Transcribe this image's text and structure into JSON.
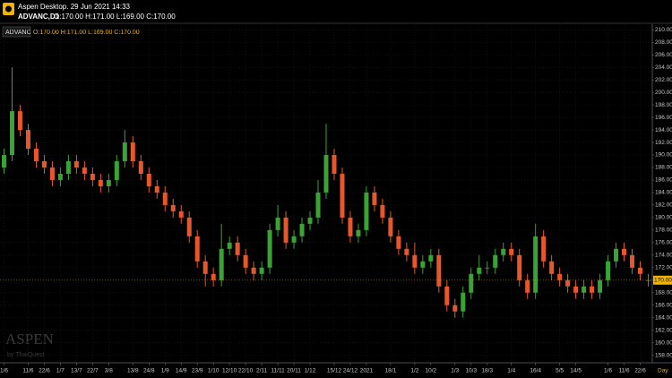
{
  "header": {
    "app_title": "Aspen Desktop. 29 Jun 2021 14:33",
    "symbol": "ADVANC,D1",
    "ohlc": "O:170.00 H:171.00 L:169.00 C:170.00"
  },
  "chart_data": {
    "type": "candlestick",
    "legend": {
      "symbol": "ADVANC",
      "ohlc": "O:170.00 H:171.00 L:169.00 C:170.00"
    },
    "watermark": {
      "brand": "ASPEN",
      "by": "by ThaiQuest"
    },
    "x_label": "Day",
    "up_color": "#3aa335",
    "down_color": "#e8572c",
    "grid": true,
    "categories": [
      "1/6",
      null,
      null,
      "11/6",
      null,
      "22/6",
      null,
      "1/7",
      null,
      "13/7",
      null,
      "22/7",
      null,
      "3/8",
      null,
      null,
      "13/8",
      null,
      "24/8",
      null,
      "1/9",
      null,
      "14/9",
      null,
      "23/9",
      null,
      "1/10",
      null,
      "12/10",
      null,
      "22/10",
      null,
      "2/11",
      null,
      "11/11",
      null,
      "20/11",
      null,
      "1/12",
      null,
      null,
      "15/12",
      null,
      "24/12",
      null,
      "2021",
      null,
      null,
      "18/1",
      null,
      null,
      "1/2",
      null,
      "10/2",
      null,
      null,
      "1/3",
      null,
      "10/3",
      null,
      "18/3",
      null,
      null,
      "1/4",
      null,
      null,
      "16/4",
      null,
      null,
      "5/5",
      null,
      "14/5",
      null,
      null,
      null,
      "1/6",
      null,
      "11/6",
      null,
      "22/6",
      null
    ],
    "open": [
      188,
      190,
      197,
      194,
      191,
      189,
      188,
      186,
      187,
      189,
      188,
      187,
      186,
      185,
      186,
      189,
      192,
      189,
      187,
      185,
      184,
      182,
      181,
      180,
      177,
      173,
      171,
      170,
      175,
      176,
      174,
      172,
      171,
      172,
      178,
      180,
      176,
      177,
      179,
      180,
      184,
      190,
      187,
      180,
      177,
      178,
      184,
      182,
      180,
      177,
      175,
      174,
      172,
      173,
      174,
      169,
      166,
      165,
      168,
      171,
      172,
      172,
      174,
      175,
      174,
      170,
      168,
      177,
      173,
      171,
      170,
      169,
      168,
      169,
      168,
      170,
      173,
      175,
      174,
      172,
      170
    ],
    "high": [
      191,
      204,
      198,
      195,
      192,
      190,
      189,
      188,
      190,
      190,
      189,
      188,
      187,
      187,
      190,
      194,
      193,
      190,
      188,
      186,
      185,
      183,
      182,
      181,
      178,
      174,
      172,
      179,
      177,
      177,
      175,
      173,
      173,
      179,
      182,
      181,
      178,
      180,
      181,
      186,
      195,
      191,
      188,
      181,
      179,
      185,
      185,
      183,
      181,
      178,
      176,
      176,
      174,
      175,
      175,
      170,
      167,
      169,
      172,
      174,
      173,
      175,
      176,
      176,
      175,
      171,
      179,
      178,
      174,
      172,
      171,
      170,
      170,
      170,
      171,
      174,
      176,
      176,
      175,
      173,
      171
    ],
    "low": [
      187,
      189,
      193,
      190,
      188,
      187,
      185,
      185,
      186,
      187,
      186,
      185,
      184,
      184,
      185,
      188,
      188,
      186,
      184,
      183,
      181,
      180,
      179,
      176,
      172,
      169,
      169,
      169,
      174,
      173,
      171,
      170,
      170,
      171,
      177,
      175,
      175,
      176,
      178,
      179,
      183,
      186,
      179,
      176,
      176,
      177,
      181,
      179,
      176,
      174,
      173,
      171,
      171,
      172,
      168,
      165,
      164,
      164,
      167,
      170,
      171,
      171,
      173,
      173,
      169,
      167,
      167,
      172,
      170,
      169,
      168,
      167,
      167,
      167,
      167,
      169,
      172,
      173,
      171,
      170,
      169
    ],
    "close": [
      190,
      197,
      194,
      191,
      189,
      188,
      186,
      187,
      189,
      188,
      187,
      186,
      185,
      186,
      189,
      192,
      189,
      187,
      185,
      184,
      182,
      181,
      180,
      177,
      173,
      171,
      170,
      175,
      176,
      174,
      172,
      171,
      172,
      178,
      180,
      176,
      177,
      179,
      180,
      184,
      190,
      187,
      180,
      177,
      178,
      184,
      182,
      180,
      177,
      175,
      174,
      172,
      173,
      174,
      169,
      166,
      165,
      168,
      171,
      172,
      172,
      174,
      175,
      174,
      170,
      168,
      177,
      173,
      171,
      170,
      169,
      168,
      169,
      168,
      170,
      173,
      175,
      174,
      172,
      171,
      170
    ],
    "last_price": {
      "value": 170,
      "label": "170.00"
    },
    "ylim": [
      156.8,
      210.9
    ],
    "yticks": [
      {
        "value": 210,
        "label": "210.00"
      },
      {
        "value": 208,
        "label": "208.00"
      },
      {
        "value": 206,
        "label": "206.00"
      },
      {
        "value": 204,
        "label": "204.00"
      },
      {
        "value": 202,
        "label": "202.00"
      },
      {
        "value": 200,
        "label": "200.00"
      },
      {
        "value": 198,
        "label": "198.00"
      },
      {
        "value": 196,
        "label": "196.00"
      },
      {
        "value": 194,
        "label": "194.00"
      },
      {
        "value": 192,
        "label": "192.00"
      },
      {
        "value": 190,
        "label": "190.00"
      },
      {
        "value": 188,
        "label": "188.00"
      },
      {
        "value": 186,
        "label": "186.00"
      },
      {
        "value": 184,
        "label": "184.00"
      },
      {
        "value": 182,
        "label": "182.00"
      },
      {
        "value": 180,
        "label": "180.00"
      },
      {
        "value": 178,
        "label": "178.00"
      },
      {
        "value": 176,
        "label": "176.00"
      },
      {
        "value": 174,
        "label": "174.00"
      },
      {
        "value": 172,
        "label": "172.00"
      },
      {
        "value": 170,
        "label": "170.00"
      },
      {
        "value": 168,
        "label": "168.00"
      },
      {
        "value": 166,
        "label": "166.00"
      },
      {
        "value": 164,
        "label": "164.00"
      },
      {
        "value": 162,
        "label": "162.00"
      },
      {
        "value": 160,
        "label": "160.00"
      },
      {
        "value": 158,
        "label": "158.00"
      }
    ]
  }
}
